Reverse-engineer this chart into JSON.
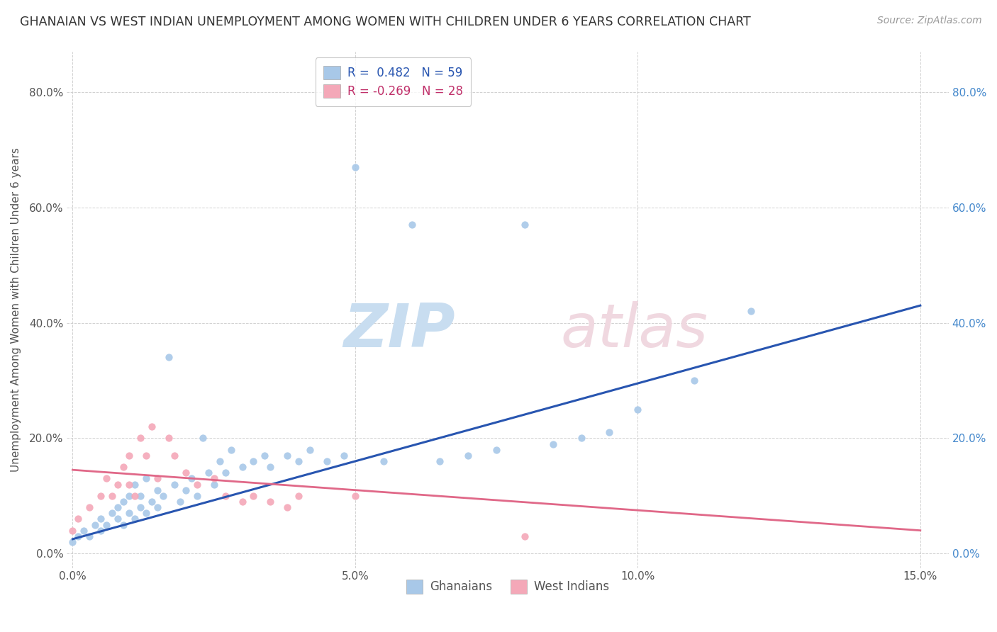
{
  "title": "GHANAIAN VS WEST INDIAN UNEMPLOYMENT AMONG WOMEN WITH CHILDREN UNDER 6 YEARS CORRELATION CHART",
  "source": "Source: ZipAtlas.com",
  "ylabel": "Unemployment Among Women with Children Under 6 years",
  "xlim": [
    -0.001,
    0.155
  ],
  "ylim": [
    -0.025,
    0.87
  ],
  "yticks": [
    0.0,
    0.2,
    0.4,
    0.6,
    0.8
  ],
  "xticks": [
    0.0,
    0.05,
    0.1,
    0.15
  ],
  "xtick_labels": [
    "0.0%",
    "5.0%",
    "10.0%",
    "15.0%"
  ],
  "ytick_labels": [
    "0.0%",
    "20.0%",
    "40.0%",
    "60.0%",
    "80.0%"
  ],
  "legend_labels": [
    "Ghanaians",
    "West Indians"
  ],
  "blue_color": "#a8c8e8",
  "pink_color": "#f4a8b8",
  "blue_line_color": "#2855b0",
  "pink_line_color": "#e06888",
  "R_blue": 0.482,
  "N_blue": 59,
  "R_pink": -0.269,
  "N_pink": 28,
  "background_color": "#ffffff",
  "grid_color": "#cccccc",
  "blue_scatter_x": [
    0.0,
    0.001,
    0.002,
    0.003,
    0.004,
    0.005,
    0.005,
    0.006,
    0.007,
    0.008,
    0.008,
    0.009,
    0.009,
    0.01,
    0.01,
    0.011,
    0.011,
    0.012,
    0.012,
    0.013,
    0.013,
    0.014,
    0.015,
    0.015,
    0.016,
    0.017,
    0.018,
    0.019,
    0.02,
    0.021,
    0.022,
    0.023,
    0.024,
    0.025,
    0.026,
    0.027,
    0.028,
    0.03,
    0.032,
    0.034,
    0.035,
    0.038,
    0.04,
    0.042,
    0.045,
    0.048,
    0.05,
    0.055,
    0.06,
    0.065,
    0.07,
    0.075,
    0.08,
    0.085,
    0.09,
    0.095,
    0.1,
    0.11,
    0.12
  ],
  "blue_scatter_y": [
    0.02,
    0.03,
    0.04,
    0.03,
    0.05,
    0.04,
    0.06,
    0.05,
    0.07,
    0.06,
    0.08,
    0.05,
    0.09,
    0.07,
    0.1,
    0.06,
    0.12,
    0.08,
    0.1,
    0.07,
    0.13,
    0.09,
    0.08,
    0.11,
    0.1,
    0.34,
    0.12,
    0.09,
    0.11,
    0.13,
    0.1,
    0.2,
    0.14,
    0.12,
    0.16,
    0.14,
    0.18,
    0.15,
    0.16,
    0.17,
    0.15,
    0.17,
    0.16,
    0.18,
    0.16,
    0.17,
    0.67,
    0.16,
    0.57,
    0.16,
    0.17,
    0.18,
    0.57,
    0.19,
    0.2,
    0.21,
    0.25,
    0.3,
    0.42
  ],
  "pink_scatter_x": [
    0.0,
    0.001,
    0.003,
    0.005,
    0.006,
    0.007,
    0.008,
    0.009,
    0.01,
    0.01,
    0.011,
    0.012,
    0.013,
    0.014,
    0.015,
    0.017,
    0.018,
    0.02,
    0.022,
    0.025,
    0.027,
    0.03,
    0.032,
    0.035,
    0.038,
    0.04,
    0.05,
    0.08
  ],
  "pink_scatter_y": [
    0.04,
    0.06,
    0.08,
    0.1,
    0.13,
    0.1,
    0.12,
    0.15,
    0.12,
    0.17,
    0.1,
    0.2,
    0.17,
    0.22,
    0.13,
    0.2,
    0.17,
    0.14,
    0.12,
    0.13,
    0.1,
    0.09,
    0.1,
    0.09,
    0.08,
    0.1,
    0.1,
    0.03
  ],
  "blue_trend_x0": 0.0,
  "blue_trend_y0": 0.025,
  "blue_trend_x1": 0.15,
  "blue_trend_y1": 0.43,
  "pink_trend_x0": 0.0,
  "pink_trend_y0": 0.145,
  "pink_trend_x1": 0.15,
  "pink_trend_y1": 0.04
}
